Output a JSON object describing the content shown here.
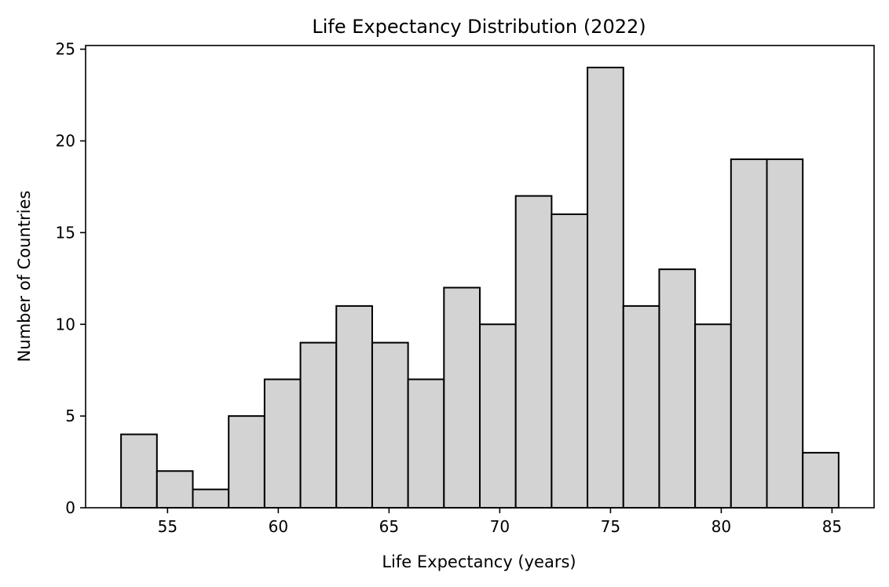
{
  "chart_data": {
    "type": "bar",
    "title": "Life Expectancy Distribution (2022)",
    "xlabel": "Life Expectancy (years)",
    "ylabel": "Number of Countries",
    "bin_edges": [
      52.9,
      54.52,
      56.14,
      57.76,
      59.38,
      61.0,
      62.62,
      64.24,
      65.86,
      67.48,
      69.1,
      70.72,
      72.34,
      73.96,
      75.58,
      77.2,
      78.82,
      80.44,
      82.06,
      83.68,
      85.3
    ],
    "values": [
      4,
      2,
      1,
      5,
      7,
      9,
      11,
      9,
      7,
      12,
      10,
      17,
      16,
      24,
      11,
      13,
      10,
      19,
      19,
      3
    ],
    "xlim": [
      51.3,
      86.9
    ],
    "ylim": [
      0,
      25.2
    ],
    "xticks": [
      55,
      60,
      65,
      70,
      75,
      80,
      85
    ],
    "yticks": [
      0,
      5,
      10,
      15,
      20,
      25
    ],
    "grid": false,
    "bar_color": "#d3d3d3",
    "edge_color": "#000000"
  }
}
